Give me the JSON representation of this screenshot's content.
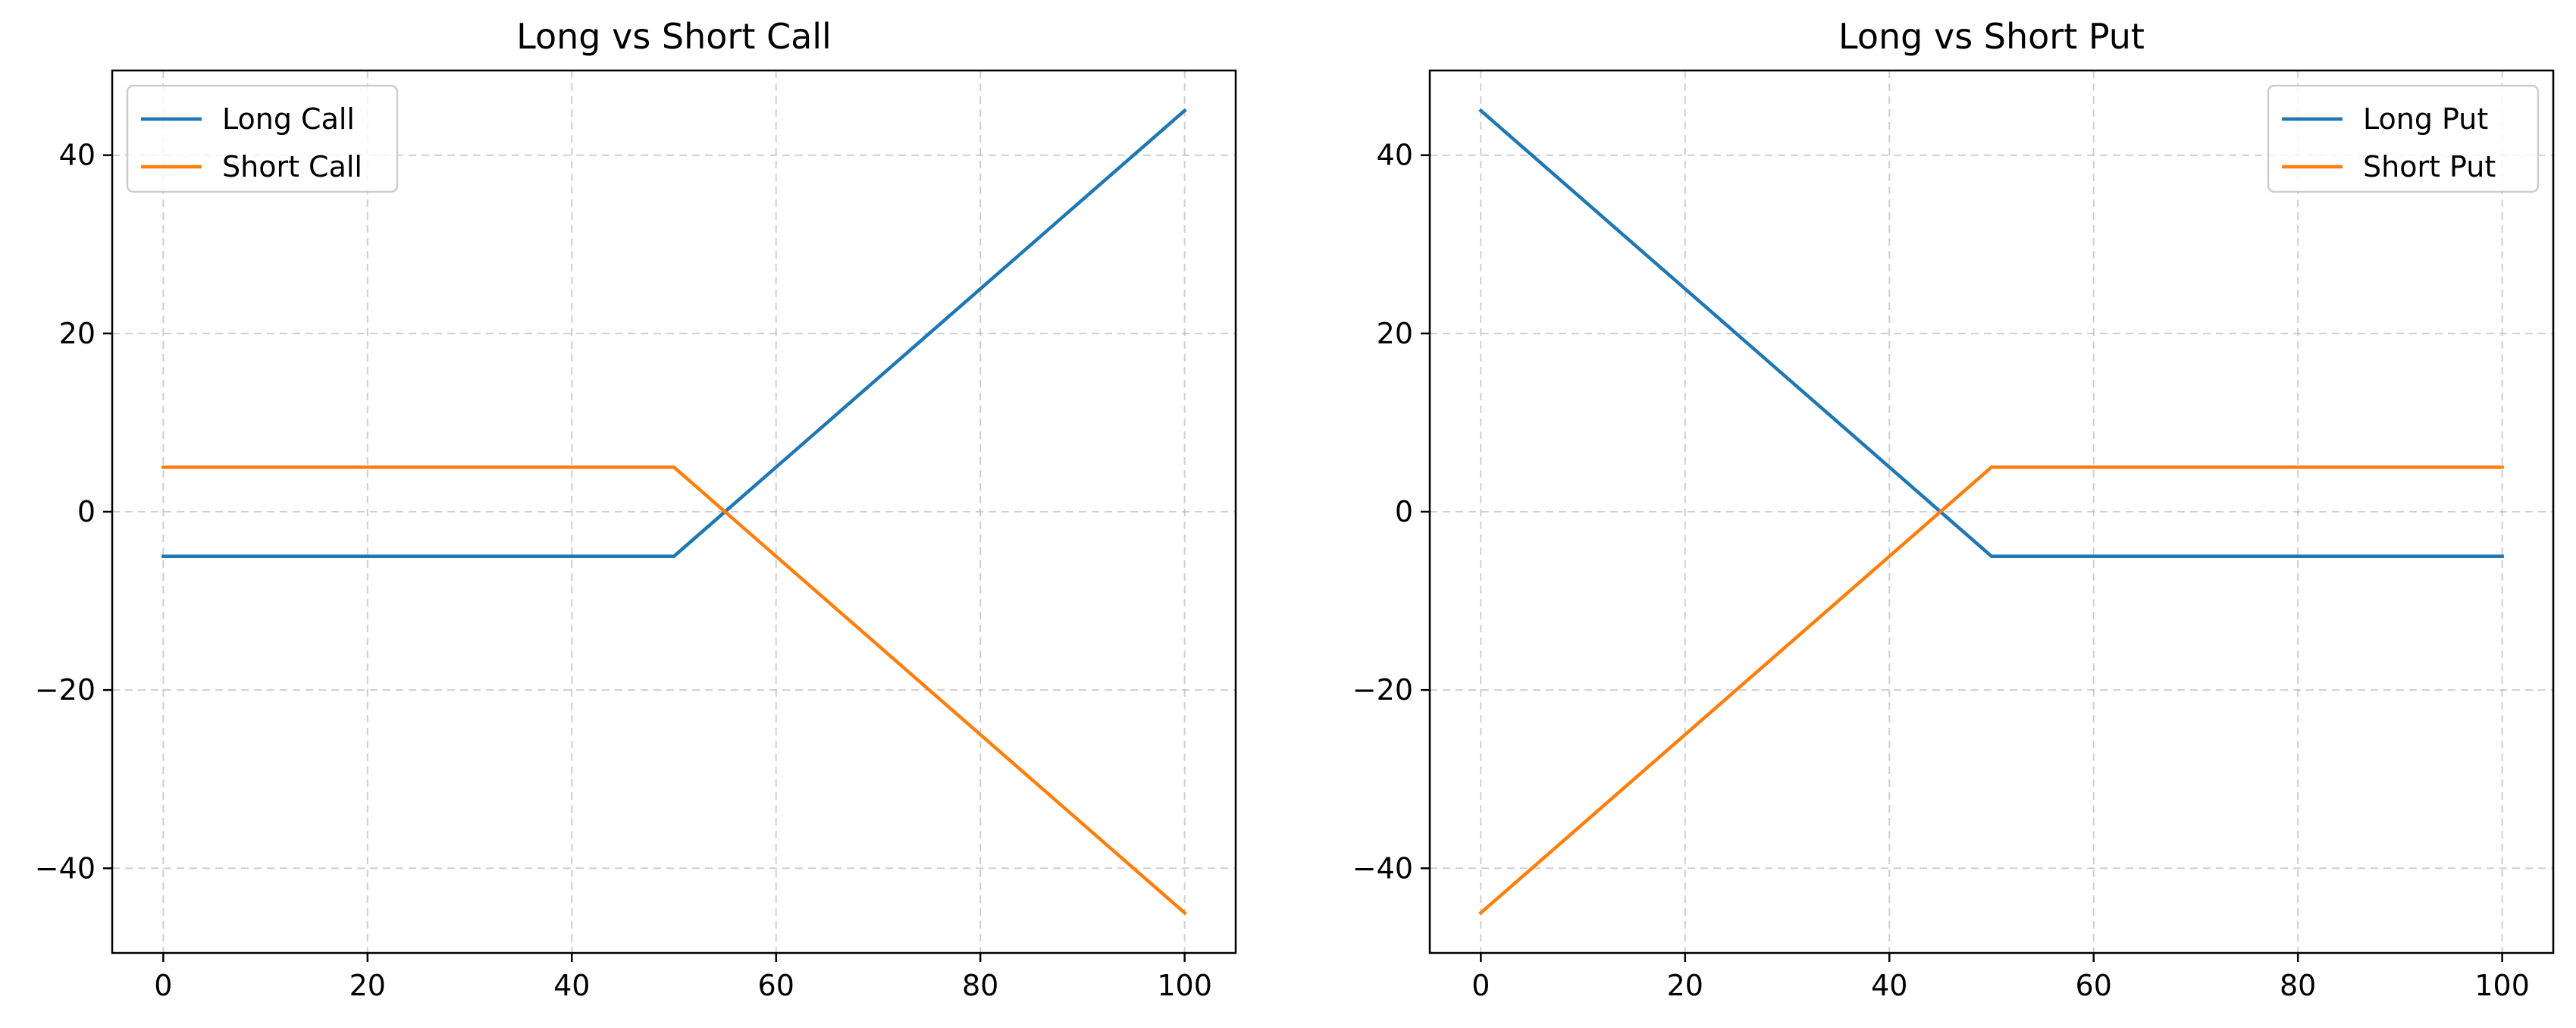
{
  "chart_data": [
    {
      "type": "line",
      "title": "Long vs Short Call",
      "xlabel": "",
      "ylabel": "",
      "xlim": [
        -5,
        105
      ],
      "ylim": [
        -49.5,
        49.5
      ],
      "xticks": [
        0,
        20,
        40,
        60,
        80,
        100
      ],
      "yticks": [
        -40,
        -20,
        0,
        20,
        40
      ],
      "grid": true,
      "legend_position": "top-left",
      "series": [
        {
          "name": "Long Call",
          "color": "#1f77b4",
          "x": [
            0,
            49,
            50,
            51,
            100
          ],
          "y": [
            -5,
            -5,
            -5,
            -4,
            45
          ]
        },
        {
          "name": "Short Call",
          "color": "#ff7f0e",
          "x": [
            0,
            49,
            50,
            51,
            100
          ],
          "y": [
            5,
            5,
            5,
            4,
            -45
          ]
        }
      ]
    },
    {
      "type": "line",
      "title": "Long vs Short Put",
      "xlabel": "",
      "ylabel": "",
      "xlim": [
        -5,
        105
      ],
      "ylim": [
        -49.5,
        49.5
      ],
      "xticks": [
        0,
        20,
        40,
        60,
        80,
        100
      ],
      "yticks": [
        -40,
        -20,
        0,
        20,
        40
      ],
      "grid": true,
      "legend_position": "top-right",
      "series": [
        {
          "name": "Long Put",
          "color": "#1f77b4",
          "x": [
            0,
            49,
            50,
            51,
            100
          ],
          "y": [
            45,
            -4,
            -5,
            -5,
            -5
          ]
        },
        {
          "name": "Short Put",
          "color": "#ff7f0e",
          "x": [
            0,
            49,
            50,
            51,
            100
          ],
          "y": [
            -45,
            4,
            5,
            5,
            5
          ]
        }
      ]
    }
  ]
}
